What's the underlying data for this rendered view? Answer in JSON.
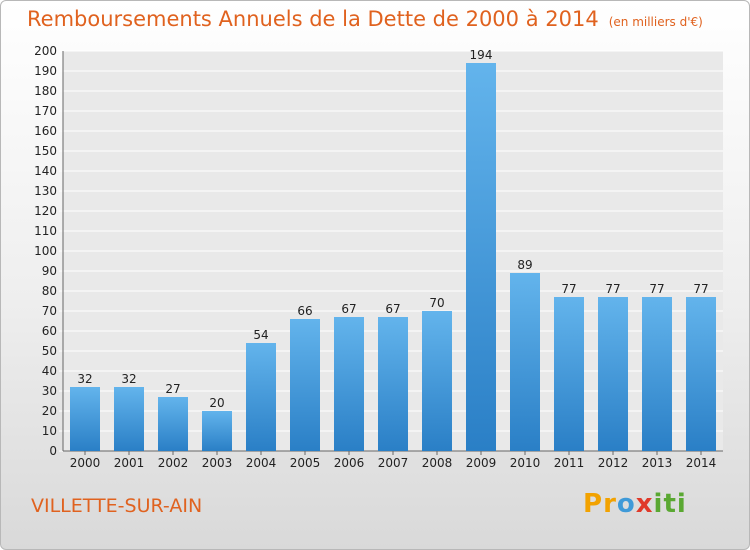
{
  "header": {
    "title": "Remboursements Annuels de la Dette de 2000 à 2014",
    "unit": "(en milliers d'€)"
  },
  "footer": {
    "city": "VILLETTE-SUR-AIN",
    "logo": [
      "P",
      "r",
      "o",
      "x",
      "i",
      "t",
      "i"
    ]
  },
  "colors": {
    "bar_top": "#63b4ec",
    "bar_bottom": "#2a7fc6",
    "title": "#e0621f",
    "logo": [
      "#f2a200",
      "#f2a200",
      "#3f9ad8",
      "#e03a2a",
      "#5aa832",
      "#5aa832",
      "#5aa832"
    ]
  },
  "chart_data": {
    "type": "bar",
    "title": "Remboursements Annuels de la Dette de 2000 à 2014",
    "xlabel": "",
    "ylabel": "",
    "categories": [
      "2000",
      "2001",
      "2002",
      "2003",
      "2004",
      "2005",
      "2006",
      "2007",
      "2008",
      "2009",
      "2010",
      "2011",
      "2012",
      "2013",
      "2014"
    ],
    "values": [
      32,
      32,
      27,
      20,
      54,
      66,
      67,
      67,
      70,
      194,
      89,
      77,
      77,
      77,
      77
    ],
    "data_labels": [
      "32",
      "32",
      "27",
      "20",
      "54",
      "66",
      "67",
      "67",
      "70",
      "194",
      "89",
      "77",
      "77",
      "77",
      "77"
    ],
    "ylim": [
      0,
      200
    ],
    "ytick_step": 10,
    "yticks": [
      "0",
      "10",
      "20",
      "30",
      "40",
      "50",
      "60",
      "70",
      "80",
      "90",
      "100",
      "110",
      "120",
      "130",
      "140",
      "150",
      "160",
      "170",
      "180",
      "190",
      "200"
    ],
    "grid": true
  }
}
